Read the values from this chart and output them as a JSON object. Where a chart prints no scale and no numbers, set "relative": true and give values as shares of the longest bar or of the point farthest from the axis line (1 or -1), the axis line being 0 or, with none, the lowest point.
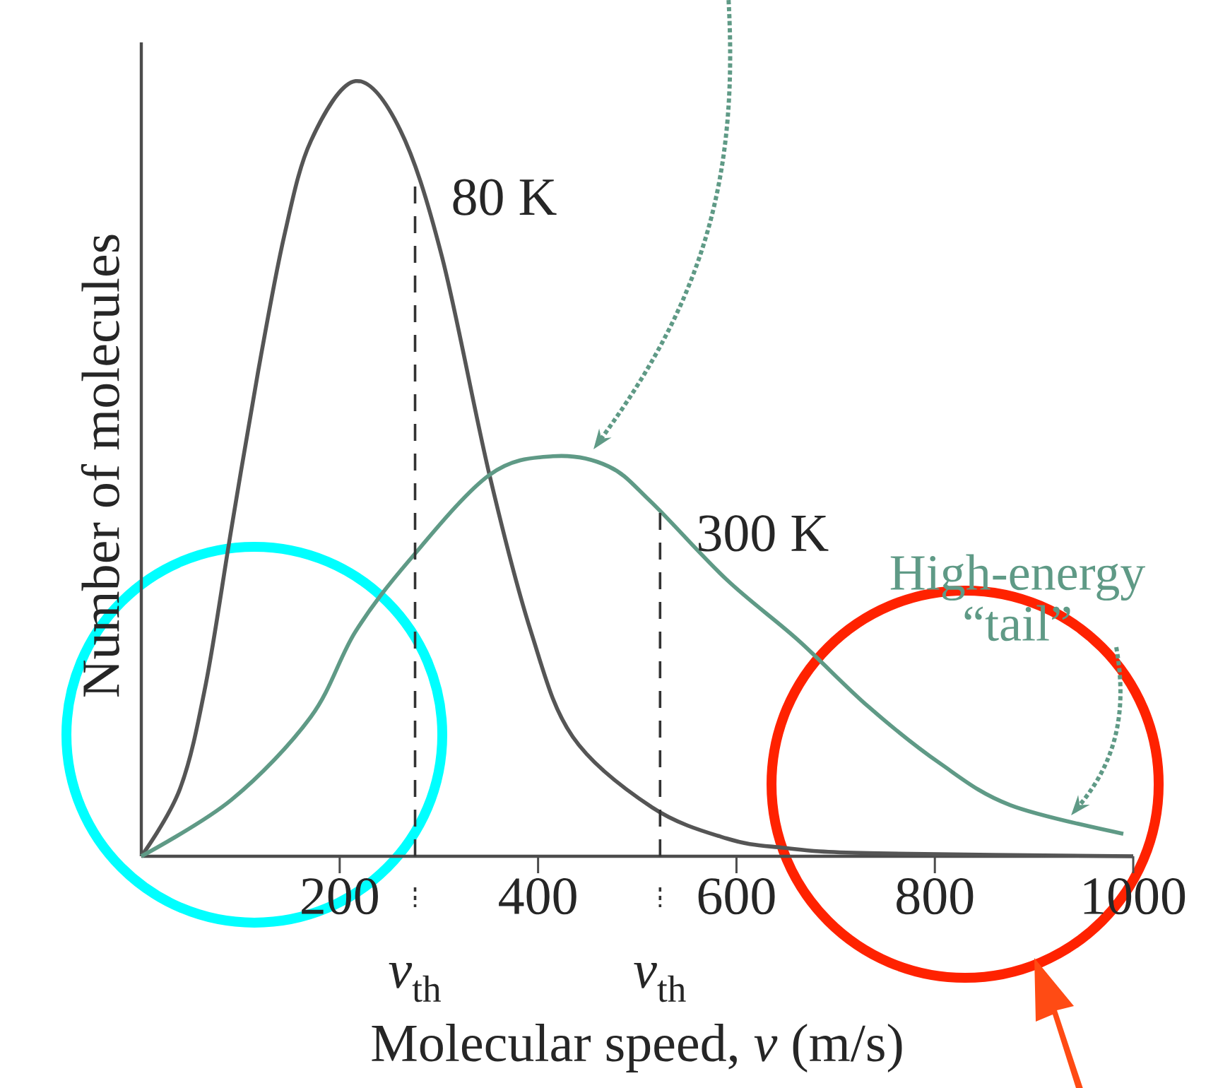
{
  "chart_data": {
    "type": "line",
    "relative": true,
    "xlabel": "Molecular speed, *v* (m/s)",
    "ylabel": "Number of molecules",
    "xlim": [
      0,
      1000
    ],
    "xticks": [
      200,
      400,
      600,
      800,
      1000
    ],
    "line_style": "solid",
    "series": [
      {
        "name": "80 K",
        "color": "#555555",
        "x": [
          0,
          39,
          65,
          91,
          118,
          144,
          171,
          216,
          261,
          303,
          351,
          393,
          435,
          515,
          590,
          647,
          733,
          1000
        ],
        "values": [
          0,
          0.087,
          0.222,
          0.424,
          0.627,
          0.8,
          0.923,
          1,
          0.937,
          0.774,
          0.492,
          0.289,
          0.154,
          0.063,
          0.023,
          0.011,
          0.004,
          0
        ]
      },
      {
        "name": "300 K",
        "color": "#5f9a86",
        "x": [
          0,
          91,
          171,
          216,
          271,
          351,
          415,
          471,
          514,
          590,
          662,
          733,
          805,
          876,
          990
        ],
        "values": [
          0,
          0.073,
          0.18,
          0.29,
          0.383,
          0.492,
          0.516,
          0.503,
          0.457,
          0.357,
          0.279,
          0.193,
          0.12,
          0.066,
          0.029
        ]
      }
    ],
    "ref_lines": [
      {
        "axis": "x",
        "value": 276,
        "label": "*v*$_{th}$",
        "line_style": "dashed",
        "color": "#333333"
      },
      {
        "axis": "x",
        "value": 523,
        "label": "*v*$_{th}$",
        "line_style": "dashed",
        "color": "#333333"
      }
    ],
    "annotations": [
      "High-energy “tail”"
    ]
  }
}
